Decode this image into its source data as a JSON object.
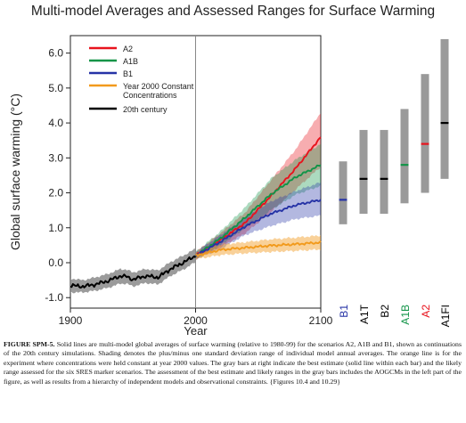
{
  "title": "Multi-model Averages and Assessed Ranges for Surface Warming",
  "caption": {
    "label": "FIGURE SPM-5.",
    "text": " Solid lines are multi-model global averages of surface warming (relative to 1980-99) for the scenarios A2, A1B and B1, shown as continuations of the 20th century simulations. Shading denotes the plus/minus one standard deviation range of individual model annual averages. The orange line is for the experiment where concentrations were held constant at year 2000 values. The gray bars at right indicate the best estimate (solid line within each bar) and the likely range assessed for the six SRES marker scenarios. The assessment of the best estimate and likely ranges in the gray bars includes the AOGCMs in the left part of the figure, as well as results from a hierarchy of independent models and observational constraints. {Figures 10.4 and 10.29}"
  },
  "chart_data": {
    "type": "line",
    "xlabel": "Year",
    "ylabel": "Global surface warming (°C)",
    "xlim": [
      1900,
      2100
    ],
    "ylim": [
      -1.3,
      6.5
    ],
    "x_ticks": [
      "1900",
      "2000",
      "2100"
    ],
    "y_ticks": [
      "-1.0",
      "0.0",
      "1.0",
      "2.0",
      "3.0",
      "4.0",
      "5.0",
      "6.0"
    ],
    "legend_position": "top-left",
    "legend": [
      {
        "label": "A2",
        "color": "#e8131d"
      },
      {
        "label": "A1B",
        "color": "#129448"
      },
      {
        "label": "B1",
        "color": "#2633a6"
      },
      {
        "label": "Year 2000 Constant Concentrations",
        "color": "#f29a1c"
      },
      {
        "label": "20th century",
        "color": "#000000"
      }
    ],
    "series": [
      {
        "name": "20th century",
        "color": "#000000",
        "x": [
          1900,
          1910,
          1920,
          1930,
          1940,
          1945,
          1950,
          1960,
          1970,
          1980,
          1990,
          2000
        ],
        "y": [
          -0.65,
          -0.68,
          -0.62,
          -0.52,
          -0.38,
          -0.4,
          -0.48,
          -0.38,
          -0.42,
          -0.18,
          0.0,
          0.2
        ],
        "lower": [
          -0.85,
          -0.85,
          -0.8,
          -0.72,
          -0.6,
          -0.6,
          -0.68,
          -0.58,
          -0.62,
          -0.38,
          -0.2,
          0.02
        ],
        "upper": [
          -0.45,
          -0.5,
          -0.42,
          -0.32,
          -0.18,
          -0.2,
          -0.28,
          -0.18,
          -0.22,
          0.02,
          0.2,
          0.4
        ]
      },
      {
        "name": "A2",
        "color": "#e8131d",
        "x": [
          2000,
          2020,
          2040,
          2060,
          2080,
          2100
        ],
        "y": [
          0.2,
          0.65,
          1.15,
          1.9,
          2.7,
          3.6
        ],
        "lower": [
          0.1,
          0.45,
          0.85,
          1.45,
          2.1,
          2.75
        ],
        "upper": [
          0.3,
          0.85,
          1.45,
          2.35,
          3.25,
          4.3
        ]
      },
      {
        "name": "A1B",
        "color": "#129448",
        "x": [
          2000,
          2020,
          2040,
          2060,
          2080,
          2100
        ],
        "y": [
          0.2,
          0.7,
          1.3,
          1.95,
          2.45,
          2.8
        ],
        "lower": [
          0.1,
          0.5,
          1.0,
          1.5,
          1.95,
          2.2
        ],
        "upper": [
          0.3,
          0.9,
          1.6,
          2.4,
          2.95,
          3.4
        ]
      },
      {
        "name": "B1",
        "color": "#2633a6",
        "x": [
          2000,
          2020,
          2040,
          2060,
          2080,
          2100
        ],
        "y": [
          0.2,
          0.6,
          1.05,
          1.4,
          1.65,
          1.8
        ],
        "lower": [
          0.1,
          0.4,
          0.8,
          1.05,
          1.25,
          1.35
        ],
        "upper": [
          0.3,
          0.8,
          1.3,
          1.75,
          2.05,
          2.3
        ]
      },
      {
        "name": "Year 2000 Constant Concentrations",
        "color": "#f29a1c",
        "x": [
          2000,
          2020,
          2040,
          2060,
          2080,
          2100
        ],
        "y": [
          0.2,
          0.37,
          0.43,
          0.49,
          0.53,
          0.58
        ],
        "lower": [
          0.1,
          0.22,
          0.27,
          0.31,
          0.34,
          0.38
        ],
        "upper": [
          0.3,
          0.52,
          0.59,
          0.67,
          0.72,
          0.78
        ]
      }
    ],
    "bars": [
      {
        "label": "B1",
        "low": 1.1,
        "high": 2.9,
        "best": 1.8,
        "color": "#2633a6"
      },
      {
        "label": "A1T",
        "low": 1.4,
        "high": 3.8,
        "best": 2.4,
        "color": "#000000"
      },
      {
        "label": "B2",
        "low": 1.4,
        "high": 3.8,
        "best": 2.4,
        "color": "#000000"
      },
      {
        "label": "A1B",
        "low": 1.7,
        "high": 4.4,
        "best": 2.8,
        "color": "#129448"
      },
      {
        "label": "A2",
        "low": 2.0,
        "high": 5.4,
        "best": 3.4,
        "color": "#e8131d"
      },
      {
        "label": "A1FI",
        "low": 2.4,
        "high": 6.4,
        "best": 4.0,
        "color": "#000000"
      }
    ]
  }
}
